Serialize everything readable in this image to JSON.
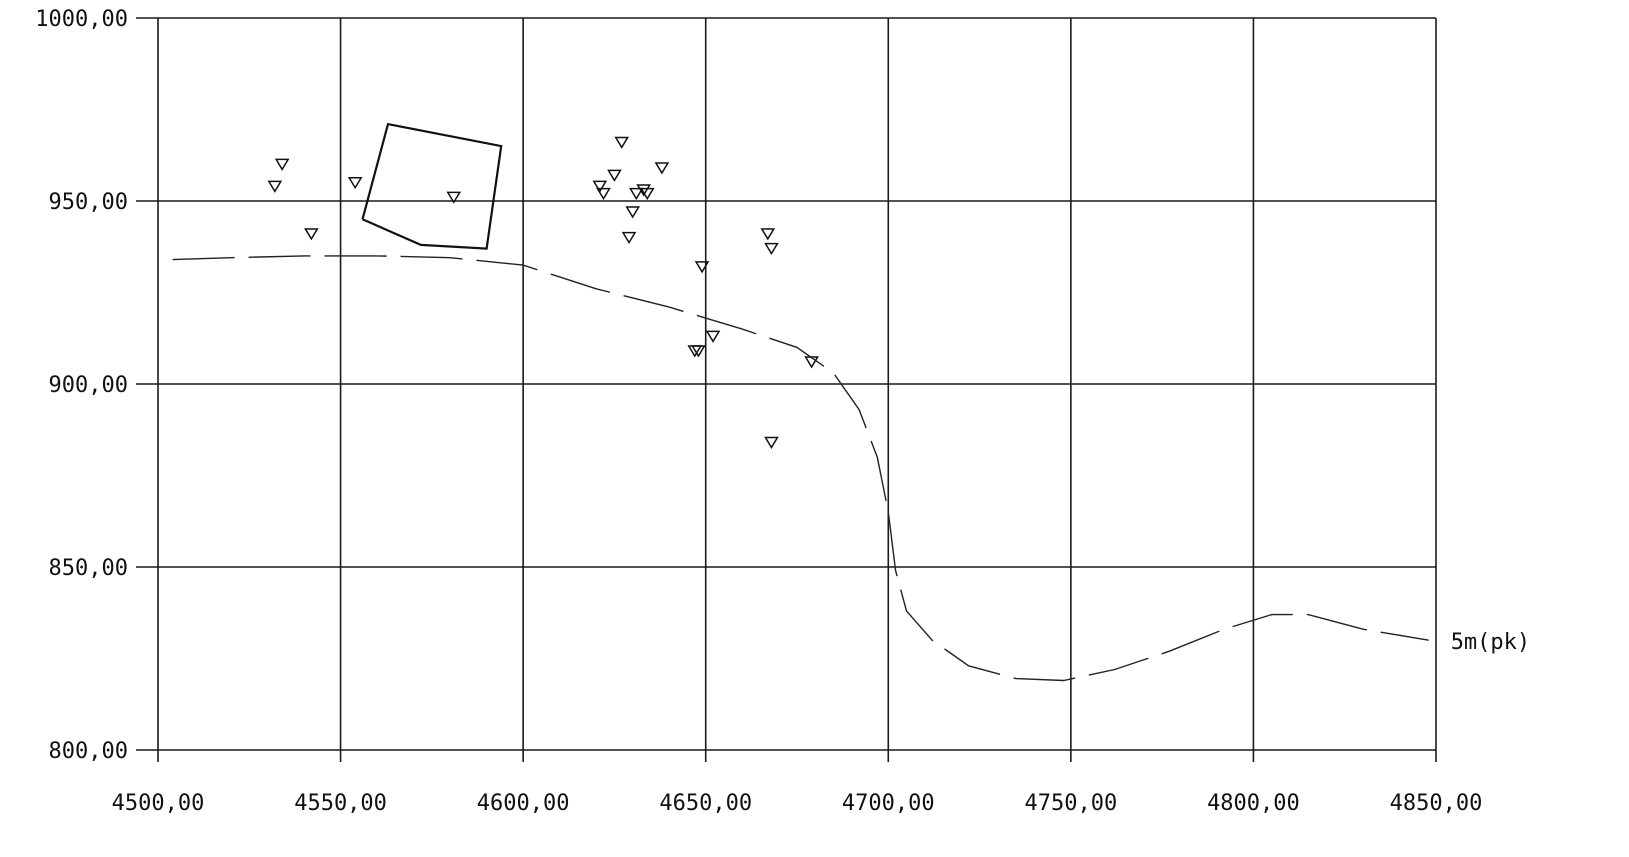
{
  "chart_data": {
    "type": "scatter",
    "title": "",
    "xlabel": "",
    "ylabel": "",
    "xlim": [
      4500,
      4850
    ],
    "ylim": [
      800,
      1000
    ],
    "grid": true,
    "x_ticks": [
      4500,
      4550,
      4600,
      4650,
      4700,
      4750,
      4800,
      4850
    ],
    "x_tick_labels": [
      "4500,00",
      "4550,00",
      "4600,00",
      "4650,00",
      "4700,00",
      "4750,00",
      "4800,00",
      "4850,00"
    ],
    "y_ticks": [
      800,
      850,
      900,
      950,
      1000
    ],
    "y_tick_labels": [
      "800,00",
      "850,00",
      "900,00",
      "950,00",
      "1000,00"
    ],
    "series": [
      {
        "name": "",
        "kind": "scatter",
        "marker": "triangle-down-open",
        "points": [
          [
            4532,
            954
          ],
          [
            4534,
            960
          ],
          [
            4542,
            941
          ],
          [
            4554,
            955
          ],
          [
            4581,
            951
          ],
          [
            4621,
            954
          ],
          [
            4622,
            952
          ],
          [
            4625,
            957
          ],
          [
            4627,
            966
          ],
          [
            4629,
            940
          ],
          [
            4630,
            947
          ],
          [
            4631,
            952
          ],
          [
            4633,
            953
          ],
          [
            4634,
            952
          ],
          [
            4638,
            959
          ],
          [
            4647,
            909
          ],
          [
            4648,
            909
          ],
          [
            4649,
            932
          ],
          [
            4652,
            913
          ],
          [
            4667,
            941
          ],
          [
            4668,
            937
          ],
          [
            4668,
            884
          ],
          [
            4679,
            906
          ]
        ]
      },
      {
        "name": "5m(pk)",
        "kind": "line",
        "style": "dashed",
        "points": [
          [
            4504,
            934
          ],
          [
            4520,
            934.5
          ],
          [
            4540,
            935
          ],
          [
            4560,
            935
          ],
          [
            4580,
            934.5
          ],
          [
            4600,
            932.5
          ],
          [
            4620,
            926
          ],
          [
            4640,
            921
          ],
          [
            4660,
            915
          ],
          [
            4675,
            910
          ],
          [
            4685,
            903
          ],
          [
            4692,
            893
          ],
          [
            4697,
            880
          ],
          [
            4700,
            865
          ],
          [
            4702,
            849
          ],
          [
            4705,
            838
          ],
          [
            4712,
            830
          ],
          [
            4722,
            823
          ],
          [
            4735,
            819.5
          ],
          [
            4748,
            819
          ],
          [
            4762,
            822
          ],
          [
            4777,
            827
          ],
          [
            4792,
            833
          ],
          [
            4805,
            837
          ],
          [
            4815,
            837
          ],
          [
            4830,
            833
          ],
          [
            4848,
            830
          ]
        ]
      },
      {
        "name": "",
        "kind": "line",
        "style": "solid-with-gap",
        "points": [
          [
            4556,
            945
          ],
          [
            4563,
            971
          ],
          [
            4594,
            965
          ],
          [
            4590,
            937
          ],
          [
            4572,
            938
          ],
          [
            4556,
            945
          ]
        ]
      }
    ]
  }
}
